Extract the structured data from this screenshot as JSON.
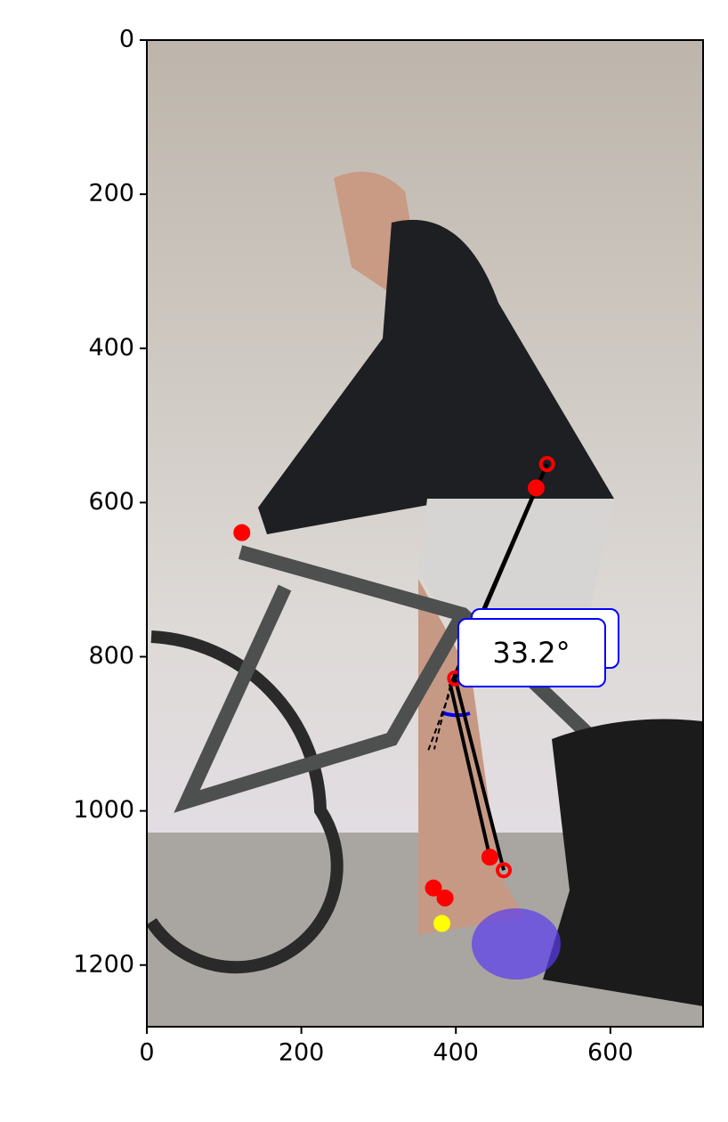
{
  "chart_data": {
    "type": "scatter",
    "annotation": "33.2°",
    "xlim": [
      0,
      720
    ],
    "ylim": [
      1280,
      0
    ],
    "xticks": [
      0,
      200,
      400,
      600
    ],
    "yticks": [
      0,
      200,
      400,
      600,
      800,
      1000,
      1200
    ],
    "lines": [
      {
        "color": "#000000",
        "style": "solid",
        "x": [
          518,
          399,
          462
        ],
        "y": [
          550,
          828,
          1077
        ]
      },
      {
        "color": "#000000",
        "style": "solid",
        "x": [
          504,
          393,
          444
        ],
        "y": [
          581,
          837,
          1060
        ]
      },
      {
        "color": "#000000",
        "style": "dashed",
        "x": [
          399,
          363
        ],
        "y": [
          828,
          925
        ]
      },
      {
        "color": "#000000",
        "style": "dashed",
        "x": [
          393,
          372
        ],
        "y": [
          837,
          920
        ]
      }
    ],
    "series": [
      {
        "color": "#ff0000",
        "marker": "open",
        "x": [
          518,
          399,
          462
        ],
        "y": [
          550,
          828,
          1077
        ]
      },
      {
        "color": "#ff0000",
        "marker": "filled",
        "x": [
          504,
          444,
          123,
          371,
          386
        ],
        "y": [
          581,
          1060,
          639,
          1100,
          1113
        ]
      },
      {
        "color": "#ffff00",
        "marker": "filled",
        "x": [
          382
        ],
        "y": [
          1146
        ]
      }
    ]
  }
}
